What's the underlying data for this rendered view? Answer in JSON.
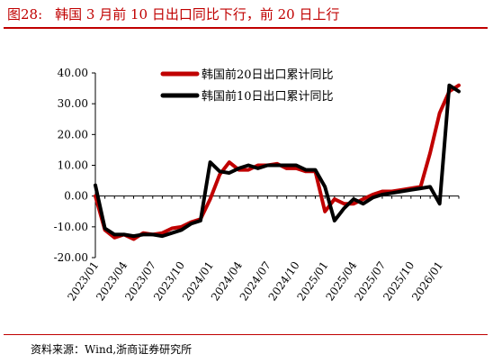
{
  "figure": {
    "label": "图28:",
    "title": "韩国 3 月前 10 日出口同比下行，前 20 日上行",
    "source": "资料来源：Wind,浙商证券研究所"
  },
  "chart_data": {
    "type": "line",
    "title": "",
    "xlabel": "",
    "ylabel": "",
    "ylim": [
      -20,
      40
    ],
    "y_ticks": [
      "40.00",
      "30.00",
      "20.00",
      "10.00",
      "0.00",
      "-10.00",
      "-20.00"
    ],
    "x": [
      "2023/01",
      "2023/02",
      "2023/03",
      "2023/04",
      "2023/05",
      "2023/06",
      "2023/07",
      "2023/08",
      "2023/09",
      "2023/10",
      "2023/11",
      "2023/12",
      "2024/01",
      "2024/02",
      "2024/03",
      "2024/04",
      "2024/05",
      "2024/06",
      "2024/07",
      "2024/08",
      "2024/09",
      "2024/10",
      "2024/11",
      "2024/12",
      "2025/01",
      "2025/02",
      "2025/03",
      "2025/04",
      "2025/05",
      "2025/06",
      "2025/07",
      "2025/08",
      "2025/09",
      "2025/10",
      "2025/11",
      "2025/12",
      "2026/01",
      "2026/02",
      "2026/03"
    ],
    "x_tick_labels": [
      "2023/01",
      "2023/04",
      "2023/07",
      "2023/10",
      "2024/01",
      "2024/04",
      "2024/07",
      "2024/10",
      "2025/01",
      "2025/04",
      "2025/07",
      "2025/10",
      "2026/01"
    ],
    "legend_position": "top",
    "grid": false,
    "series": [
      {
        "name": "韩国前20日出口累计同比",
        "color": "#c00000",
        "values": [
          0.0,
          -11.0,
          -13.5,
          -12.5,
          -14.0,
          -12.0,
          -12.5,
          -12.0,
          -10.5,
          -10.0,
          -8.5,
          -7.5,
          -1.0,
          7.0,
          11.0,
          8.5,
          8.5,
          10.0,
          10.0,
          10.5,
          9.0,
          9.0,
          8.0,
          8.0,
          -5.0,
          -1.0,
          -2.5,
          -2.5,
          -1.0,
          0.5,
          1.5,
          1.5,
          2.0,
          2.5,
          3.0,
          14.0,
          27.0,
          34.0,
          36.0
        ]
      },
      {
        "name": "韩国前10日出口累计同比",
        "color": "#000000",
        "values": [
          3.5,
          -10.5,
          -12.5,
          -12.5,
          -13.0,
          -12.5,
          -12.5,
          -13.0,
          -12.0,
          -11.0,
          -9.0,
          -8.0,
          11.0,
          8.0,
          7.5,
          9.0,
          10.0,
          9.0,
          10.0,
          10.0,
          10.0,
          10.0,
          8.5,
          8.5,
          3.0,
          -8.0,
          -4.0,
          -1.0,
          -2.5,
          -0.5,
          0.5,
          1.0,
          1.5,
          2.0,
          2.5,
          3.0,
          -2.5,
          36.0,
          34.0
        ]
      }
    ]
  }
}
